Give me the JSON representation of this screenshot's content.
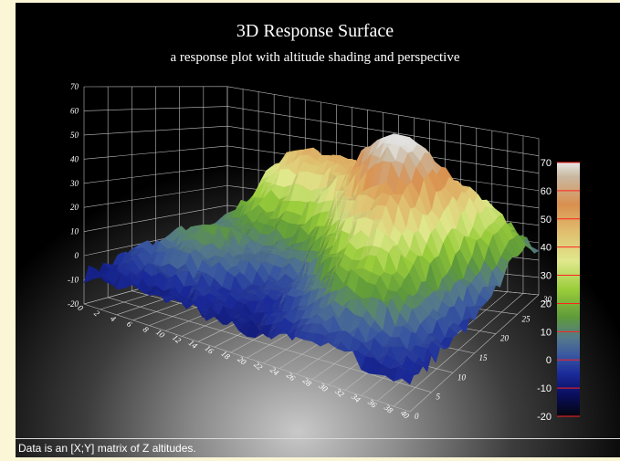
{
  "chart_data": {
    "type": "surface",
    "title": "3D Response Surface",
    "subtitle": "a response plot with altitude shading and perspective",
    "x_ticks": [
      "0",
      "2",
      "4",
      "6",
      "8",
      "10",
      "12",
      "14",
      "16",
      "18",
      "20",
      "22",
      "24",
      "26",
      "28",
      "30",
      "32",
      "34",
      "36",
      "38",
      "40"
    ],
    "y_ticks": [
      "0",
      "5",
      "10",
      "15",
      "20",
      "25",
      "30"
    ],
    "z_ticks": [
      "-20",
      "-10",
      "0",
      "10",
      "20",
      "30",
      "40",
      "50",
      "60",
      "70"
    ],
    "xlim": [
      0,
      40
    ],
    "ylim": [
      0,
      30
    ],
    "zlim": [
      -20,
      70
    ],
    "grid": true,
    "colorbar": {
      "ticks": [
        "70",
        "60",
        "50",
        "40",
        "30",
        "20",
        "10",
        "0",
        "-10",
        "-20"
      ],
      "range": [
        -20,
        70
      ],
      "stops": [
        {
          "value": -20,
          "color": "#05050f"
        },
        {
          "value": -12,
          "color": "#0a0f60"
        },
        {
          "value": -5,
          "color": "#1a2a9a"
        },
        {
          "value": 2,
          "color": "#3b5aa0"
        },
        {
          "value": 8,
          "color": "#557a8a"
        },
        {
          "value": 15,
          "color": "#5e9a3a"
        },
        {
          "value": 25,
          "color": "#9acd3a"
        },
        {
          "value": 35,
          "color": "#e0e88c"
        },
        {
          "value": 45,
          "color": "#e0c070"
        },
        {
          "value": 55,
          "color": "#d9904f"
        },
        {
          "value": 65,
          "color": "#c9b8a0"
        },
        {
          "value": 70,
          "color": "#e6e6e6"
        }
      ],
      "marker_color": "#ff2020"
    },
    "peaks": [
      {
        "x": 28,
        "y": 20,
        "z": 68,
        "spread": 5
      },
      {
        "x": 18,
        "y": 24,
        "z": 30,
        "spread": 5
      },
      {
        "x": 10,
        "y": 27,
        "z": 32,
        "spread": 5
      },
      {
        "x": 30,
        "y": 10,
        "z": 22,
        "spread": 5
      },
      {
        "x": 36,
        "y": 26,
        "z": 24,
        "spread": 4
      },
      {
        "x": 8,
        "y": 12,
        "z": 12,
        "spread": 5
      }
    ],
    "base_altitude": -8
  },
  "footer": {
    "note": "Data is an [X;Y] matrix of Z altitudes."
  }
}
